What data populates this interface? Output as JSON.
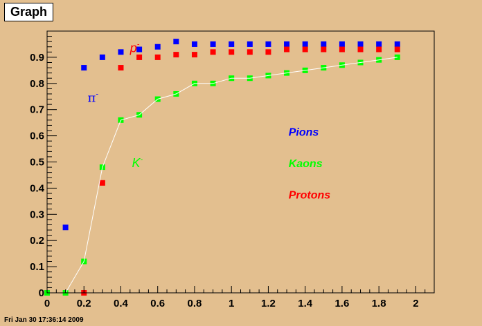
{
  "canvas": {
    "title": "Graph",
    "footer": "Fri Jan 30 17:36:14 2009",
    "background": "#e3bf8f"
  },
  "chart_data": {
    "type": "scatter",
    "title": "",
    "xlabel": "",
    "ylabel": "",
    "xlim": [
      0,
      2.1
    ],
    "ylim": [
      0,
      1.0
    ],
    "x_ticks": [
      0,
      0.2,
      0.4,
      0.6,
      0.8,
      1,
      1.2,
      1.4,
      1.6,
      1.8,
      2
    ],
    "x_tick_labels": [
      "0",
      "0.2",
      "0.4",
      "0.6",
      "0.8",
      "1",
      "1.2",
      "1.4",
      "1.6",
      "1.8",
      "2"
    ],
    "y_ticks": [
      0,
      0.1,
      0.2,
      0.3,
      0.4,
      0.5,
      0.6,
      0.7,
      0.8,
      0.9
    ],
    "y_tick_labels": [
      "0",
      "0.1",
      "0.2",
      "0.3",
      "0.4",
      "0.5",
      "0.6",
      "0.7",
      "0.8",
      "0.9"
    ],
    "grid": false,
    "series": [
      {
        "name": "Pions",
        "color": "#0000ff",
        "marker": "square",
        "line": false,
        "points": [
          [
            0.1,
            0.25
          ],
          [
            0.2,
            0.86
          ],
          [
            0.3,
            0.9
          ],
          [
            0.4,
            0.92
          ],
          [
            0.5,
            0.93
          ],
          [
            0.6,
            0.94
          ],
          [
            0.7,
            0.96
          ],
          [
            0.8,
            0.95
          ],
          [
            0.9,
            0.95
          ],
          [
            1.0,
            0.95
          ],
          [
            1.1,
            0.95
          ],
          [
            1.2,
            0.95
          ],
          [
            1.3,
            0.95
          ],
          [
            1.4,
            0.95
          ],
          [
            1.5,
            0.95
          ],
          [
            1.6,
            0.95
          ],
          [
            1.7,
            0.95
          ],
          [
            1.8,
            0.95
          ],
          [
            1.9,
            0.95
          ]
        ]
      },
      {
        "name": "Protons",
        "color": "#ff0000",
        "marker": "square",
        "line": false,
        "points": [
          [
            0.2,
            0.0
          ],
          [
            0.3,
            0.42
          ],
          [
            0.4,
            0.86
          ],
          [
            0.5,
            0.9
          ],
          [
            0.6,
            0.9
          ],
          [
            0.7,
            0.91
          ],
          [
            0.8,
            0.91
          ],
          [
            0.9,
            0.92
          ],
          [
            1.0,
            0.92
          ],
          [
            1.1,
            0.92
          ],
          [
            1.2,
            0.92
          ],
          [
            1.3,
            0.93
          ],
          [
            1.4,
            0.93
          ],
          [
            1.5,
            0.93
          ],
          [
            1.6,
            0.93
          ],
          [
            1.7,
            0.93
          ],
          [
            1.8,
            0.93
          ],
          [
            1.9,
            0.93
          ]
        ]
      },
      {
        "name": "Kaons",
        "color": "#00ff00",
        "marker": "square",
        "line": true,
        "line_color": "#ffffff",
        "points": [
          [
            0.0,
            0.0
          ],
          [
            0.1,
            0.0
          ],
          [
            0.2,
            0.12
          ],
          [
            0.3,
            0.48
          ],
          [
            0.4,
            0.66
          ],
          [
            0.5,
            0.68
          ],
          [
            0.6,
            0.74
          ],
          [
            0.7,
            0.76
          ],
          [
            0.8,
            0.8
          ],
          [
            0.9,
            0.8
          ],
          [
            1.0,
            0.82
          ],
          [
            1.1,
            0.82
          ],
          [
            1.2,
            0.83
          ],
          [
            1.3,
            0.84
          ],
          [
            1.4,
            0.85
          ],
          [
            1.5,
            0.86
          ],
          [
            1.6,
            0.87
          ],
          [
            1.7,
            0.88
          ],
          [
            1.8,
            0.89
          ],
          [
            1.9,
            0.9
          ]
        ]
      }
    ],
    "annotations": [
      {
        "text": "π",
        "sup": "-",
        "color": "#0000ff",
        "style": "normal",
        "x": 0.22,
        "y": 0.73
      },
      {
        "text": "p",
        "sup": "-",
        "color": "#ff0000",
        "style": "italic",
        "x": 0.45,
        "y": 0.92
      },
      {
        "text": "K",
        "sup": "-",
        "color": "#00ff00",
        "style": "italic",
        "x": 0.46,
        "y": 0.48
      },
      {
        "text": "Pions",
        "sup": "",
        "color": "#0000ff",
        "style": "bolditalic",
        "x": 1.31,
        "y": 0.6
      },
      {
        "text": "Kaons",
        "sup": "",
        "color": "#00ff00",
        "style": "bolditalic",
        "x": 1.31,
        "y": 0.48
      },
      {
        "text": "Protons",
        "sup": "",
        "color": "#ff0000",
        "style": "bolditalic",
        "x": 1.31,
        "y": 0.36
      }
    ]
  }
}
